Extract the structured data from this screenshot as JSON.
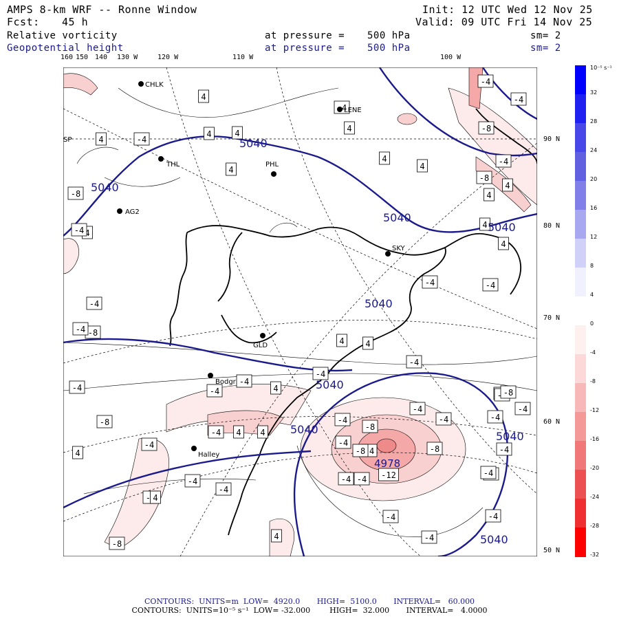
{
  "header": {
    "title": "AMPS 8-km WRF -- Ronne Window",
    "fcst_label": "Fcst:",
    "fcst_value": "45 h",
    "init": "Init: 12 UTC Wed 12 Nov 25",
    "valid": "Valid: 09 UTC Fri 14 Nov 25"
  },
  "fields": [
    {
      "name": "Relative vorticity",
      "pressure_label": "at pressure =",
      "pressure": "500 hPa",
      "sm": "sm= 2",
      "color": "#000000"
    },
    {
      "name": "Geopotential height",
      "pressure_label": "at pressure =",
      "pressure": "500 hPa",
      "sm": "sm= 2",
      "color": "#1a1a8c"
    }
  ],
  "lon_labels": [
    "160",
    "150",
    "140",
    "130 W",
    "120 W",
    "110 W",
    "100 W"
  ],
  "lat_labels": [
    "90 N",
    "80 N",
    "70 N",
    "60 N",
    "50 N"
  ],
  "stations": [
    "CHLK",
    "LENE",
    "THL",
    "PHL",
    "AG2",
    "SKY",
    "GLD",
    "Bodgr",
    "Halley",
    "SP"
  ],
  "height_contours": {
    "labels": [
      "5040",
      "5040",
      "5040",
      "5040",
      "5040",
      "5040",
      "5040",
      "5040",
      "5040"
    ],
    "low_center": "4978",
    "color": "#1a1a8c"
  },
  "vorticity_labels": [
    "-4",
    "-4",
    "4",
    "-8",
    "4",
    "-4",
    "-4",
    "4",
    "-4",
    "-8",
    "4",
    "4",
    "4",
    "4",
    "4",
    "-8",
    "4",
    "4",
    "4",
    "4",
    "4",
    "-4",
    "-4",
    "-4",
    "-8",
    "-4",
    "-4",
    "-4",
    "-4",
    "4",
    "4",
    "4",
    "-4",
    "-4",
    "4",
    "4",
    "-4",
    "-4",
    "-8",
    "-4",
    "-4",
    "-4",
    "-8",
    "-8",
    "-12",
    "-4",
    "-4",
    "-4",
    "-4",
    "-4",
    "-4",
    "-4",
    "-4",
    "-4",
    "-4",
    "-4",
    "-4",
    "-8",
    "4",
    "-4",
    "-8",
    "-4",
    "-4",
    "-8",
    "-4",
    "4",
    "-4",
    "4",
    "-4"
  ],
  "colorbar": {
    "unit": "10⁻⁵ s⁻¹",
    "ticks": [
      "32",
      "28",
      "24",
      "20",
      "16",
      "12",
      "8",
      "4",
      "0",
      "-4",
      "-8",
      "-12",
      "-16",
      "-20",
      "-24",
      "-28",
      "-32"
    ],
    "colors": [
      "#0000ff",
      "#2020f0",
      "#4848e8",
      "#6060e0",
      "#8080e8",
      "#a8a8f0",
      "#d0d0f8",
      "#f0f0ff",
      "#ffffff",
      "#fff0f0",
      "#fcd8d8",
      "#f8b8b8",
      "#f49898",
      "#f07878",
      "#ec5050",
      "#f03030",
      "#ff0000"
    ]
  },
  "footer": {
    "line1": "CONTOURS:  UNITS=m  LOW=  4920.0       HIGH=  5100.0       INTERVAL=   60.000",
    "line2": "CONTOURS:  UNITS=10⁻⁵ s⁻¹  LOW= -32.000        HIGH=  32.000       INTERVAL=   4.0000"
  }
}
